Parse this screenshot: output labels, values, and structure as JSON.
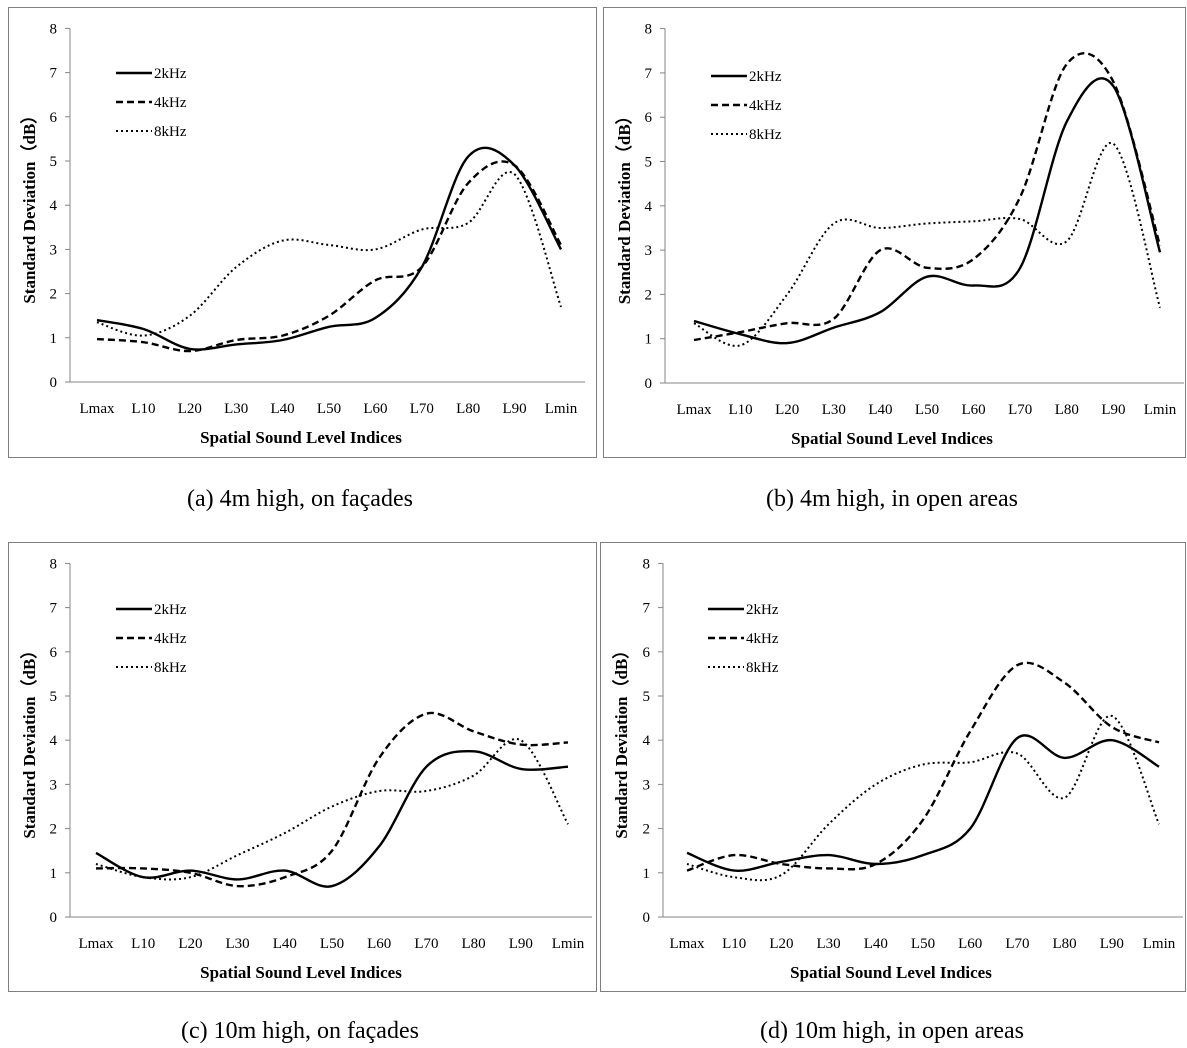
{
  "captions": {
    "a": "(a) 4m high, on façades",
    "b": "(b) 4m high, in open areas",
    "c": "(c) 10m high, on façades",
    "d": "(d) 10m high, in open areas"
  },
  "chart_data": [
    {
      "type": "line",
      "xlabel": "Spatial Sound Level Indices",
      "ylabel": "Standard Deviation（dB）",
      "ylim": [
        0,
        8
      ],
      "yticks": [
        0,
        1,
        2,
        3,
        4,
        5,
        6,
        7,
        8
      ],
      "categories": [
        "Lmax",
        "L10",
        "L20",
        "L30",
        "L40",
        "L50",
        "L60",
        "L70",
        "L80",
        "L90",
        "Lmin"
      ],
      "legend_position": "top-left",
      "series": [
        {
          "name": "2kHz",
          "style": "solid",
          "values": [
            1.4,
            1.2,
            0.75,
            0.85,
            0.95,
            1.25,
            1.45,
            2.6,
            5.1,
            4.9,
            3.0
          ]
        },
        {
          "name": "4kHz",
          "style": "dashed",
          "values": [
            0.97,
            0.9,
            0.7,
            0.95,
            1.05,
            1.5,
            2.3,
            2.6,
            4.5,
            4.9,
            3.1
          ]
        },
        {
          "name": "8kHz",
          "style": "dotted",
          "values": [
            1.35,
            1.05,
            1.5,
            2.6,
            3.2,
            3.1,
            3.0,
            3.45,
            3.6,
            4.7,
            1.7
          ]
        }
      ]
    },
    {
      "type": "line",
      "xlabel": "Spatial Sound Level Indices",
      "ylabel": "Standard Deviation（dB）",
      "ylim": [
        0,
        8
      ],
      "yticks": [
        0,
        1,
        2,
        3,
        4,
        5,
        6,
        7,
        8
      ],
      "categories": [
        "Lmax",
        "L10",
        "L20",
        "L30",
        "L40",
        "L50",
        "L60",
        "L70",
        "L80",
        "L90",
        "Lmin"
      ],
      "legend_position": "top-left",
      "series": [
        {
          "name": "2kHz",
          "style": "solid",
          "values": [
            1.4,
            1.1,
            0.9,
            1.25,
            1.6,
            2.4,
            2.2,
            2.6,
            5.9,
            6.7,
            2.95
          ]
        },
        {
          "name": "4kHz",
          "style": "dashed",
          "values": [
            0.97,
            1.15,
            1.35,
            1.45,
            3.0,
            2.6,
            2.8,
            4.2,
            7.2,
            6.8,
            3.1
          ]
        },
        {
          "name": "8kHz",
          "style": "dotted",
          "values": [
            1.35,
            0.85,
            2.0,
            3.6,
            3.5,
            3.6,
            3.65,
            3.7,
            3.2,
            5.4,
            1.7
          ]
        }
      ]
    },
    {
      "type": "line",
      "xlabel": "Spatial Sound Level Indices",
      "ylabel": "Standard Deviation（dB）",
      "ylim": [
        0,
        8
      ],
      "yticks": [
        0,
        1,
        2,
        3,
        4,
        5,
        6,
        7,
        8
      ],
      "categories": [
        "Lmax",
        "L10",
        "L20",
        "L30",
        "L40",
        "L50",
        "L60",
        "L70",
        "L80",
        "L90",
        "Lmin"
      ],
      "legend_position": "top-left",
      "series": [
        {
          "name": "2kHz",
          "style": "solid",
          "values": [
            1.45,
            0.9,
            1.05,
            0.85,
            1.05,
            0.7,
            1.6,
            3.4,
            3.75,
            3.35,
            3.4
          ]
        },
        {
          "name": "4kHz",
          "style": "dashed",
          "values": [
            1.1,
            1.1,
            1.0,
            0.7,
            0.9,
            1.5,
            3.6,
            4.6,
            4.2,
            3.9,
            3.95
          ]
        },
        {
          "name": "8kHz",
          "style": "dotted",
          "values": [
            1.2,
            0.9,
            0.9,
            1.4,
            1.9,
            2.5,
            2.85,
            2.85,
            3.2,
            4.0,
            2.1
          ]
        }
      ]
    },
    {
      "type": "line",
      "xlabel": "Spatial Sound Level Indices",
      "ylabel": "Standard Deviation（dB）",
      "ylim": [
        0,
        8
      ],
      "yticks": [
        0,
        1,
        2,
        3,
        4,
        5,
        6,
        7,
        8
      ],
      "categories": [
        "Lmax",
        "L10",
        "L20",
        "L30",
        "L40",
        "L50",
        "L60",
        "L70",
        "L80",
        "L90",
        "Lmin"
      ],
      "legend_position": "top-left",
      "series": [
        {
          "name": "2kHz",
          "style": "solid",
          "values": [
            1.45,
            1.05,
            1.25,
            1.4,
            1.2,
            1.4,
            2.0,
            4.05,
            3.6,
            4.0,
            3.4
          ]
        },
        {
          "name": "4kHz",
          "style": "dashed",
          "values": [
            1.05,
            1.4,
            1.2,
            1.1,
            1.2,
            2.2,
            4.2,
            5.7,
            5.3,
            4.3,
            3.95
          ]
        },
        {
          "name": "8kHz",
          "style": "dotted",
          "values": [
            1.2,
            0.9,
            0.95,
            2.1,
            3.0,
            3.45,
            3.5,
            3.7,
            2.7,
            4.55,
            2.1
          ]
        }
      ]
    }
  ]
}
